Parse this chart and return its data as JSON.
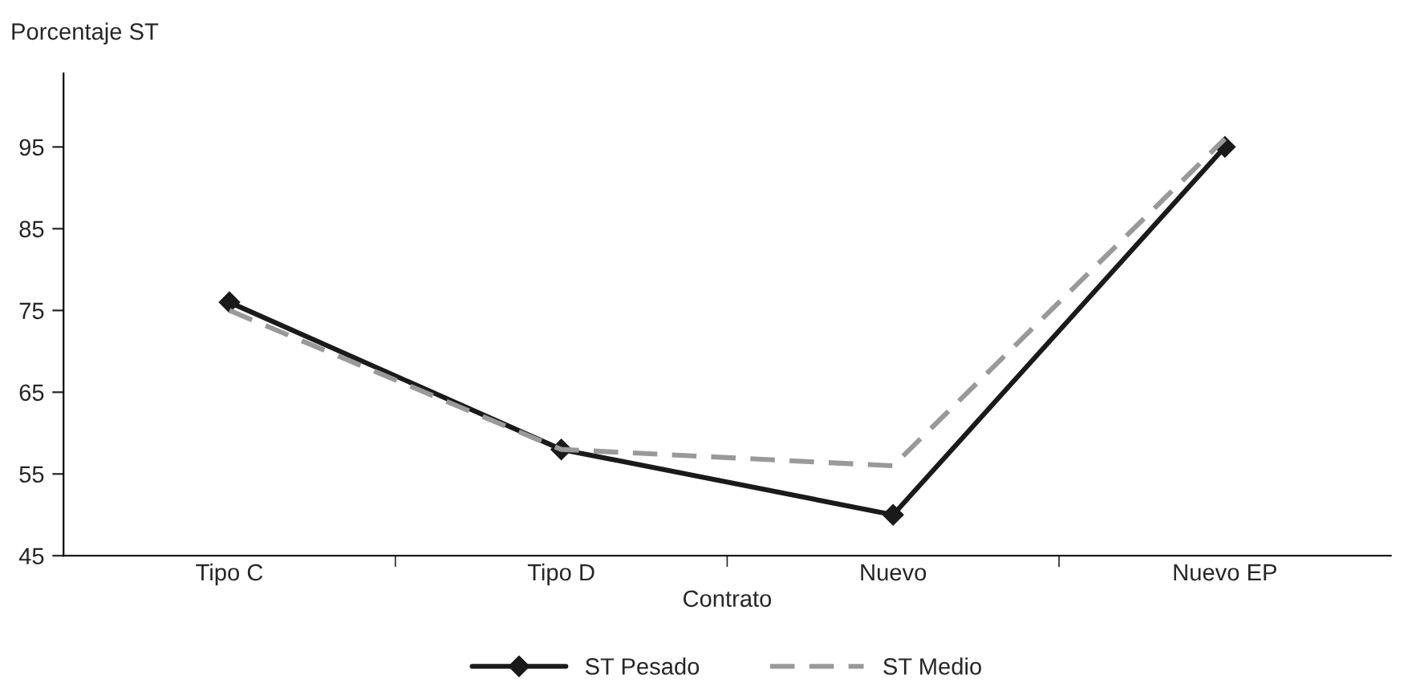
{
  "chart_data": {
    "type": "line",
    "ylabel": "Porcentaje ST",
    "xlabel": "Contrato",
    "categories": [
      "Tipo C",
      "Tipo D",
      "Nuevo",
      "Nuevo EP"
    ],
    "series": [
      {
        "name": "ST Pesado",
        "color": "#1a1a1a",
        "values": [
          76,
          58,
          50,
          95
        ],
        "marker": "diamond",
        "line_style": "solid"
      },
      {
        "name": "ST Medio",
        "color": "#999999",
        "values": [
          75,
          58,
          56,
          96
        ],
        "marker": "none",
        "line_style": "dashed"
      }
    ],
    "ylim": [
      45,
      104
    ],
    "yticks": [
      45,
      55,
      65,
      75,
      85,
      95
    ],
    "grid": false,
    "legend": "bottom"
  }
}
